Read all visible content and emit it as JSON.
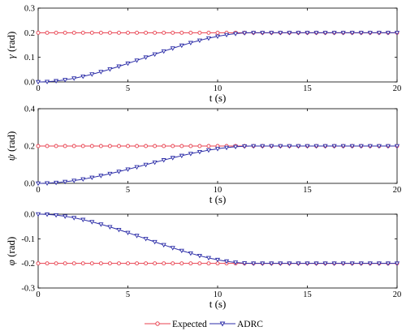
{
  "chart_data": [
    {
      "type": "line",
      "ylabel_symbol": "γ",
      "ylabel_unit": "(rad)",
      "xlabel": "t (s)",
      "xlim": [
        0,
        20
      ],
      "ylim": [
        0,
        0.3
      ],
      "xticks": [
        "0",
        "5",
        "10",
        "15",
        "20"
      ],
      "yticks": [
        "0.0",
        "0.1",
        "0.2",
        "0.3"
      ],
      "grid": false,
      "series": [
        {
          "name": "Expected",
          "color": "#e8414f",
          "marker": "circle",
          "x": [
            0,
            20
          ],
          "y": [
            0.2,
            0.2
          ]
        },
        {
          "name": "ADRC",
          "color": "#2d2ea8",
          "marker": "triangle-down",
          "x": [
            0,
            20
          ],
          "y_start": 0,
          "y_end": 0.2,
          "settle_time": 12
        }
      ]
    },
    {
      "type": "line",
      "ylabel_symbol": "ψ",
      "ylabel_unit": "(rad)",
      "xlabel": "t (s)",
      "xlim": [
        0,
        20
      ],
      "ylim": [
        0,
        0.4
      ],
      "xticks": [
        "0",
        "5",
        "10",
        "15",
        "20"
      ],
      "yticks": [
        "0.0",
        "0.2",
        "0.4"
      ],
      "grid": false,
      "series": [
        {
          "name": "Expected",
          "color": "#e8414f",
          "marker": "circle",
          "x": [
            0,
            20
          ],
          "y": [
            0.2,
            0.2
          ]
        },
        {
          "name": "ADRC",
          "color": "#2d2ea8",
          "marker": "triangle-down",
          "x": [
            0,
            20
          ],
          "y_start": 0,
          "y_end": 0.2,
          "settle_time": 12
        }
      ]
    },
    {
      "type": "line",
      "ylabel_symbol": "φ",
      "ylabel_unit": "(rad)",
      "xlabel": "t (s)",
      "xlim": [
        0,
        20
      ],
      "ylim": [
        -0.3,
        0
      ],
      "xticks": [
        "0",
        "5",
        "10",
        "15",
        "20"
      ],
      "yticks": [
        "0.0",
        "-0.1",
        "-0.2",
        "-0.3"
      ],
      "grid": false,
      "series": [
        {
          "name": "Expected",
          "color": "#e8414f",
          "marker": "circle",
          "x": [
            0,
            20
          ],
          "y": [
            -0.2,
            -0.2
          ]
        },
        {
          "name": "ADRC",
          "color": "#2d2ea8",
          "marker": "triangle-down",
          "x": [
            0,
            20
          ],
          "y_start": 0,
          "y_end": -0.2,
          "settle_time": 12
        }
      ]
    }
  ],
  "legend": {
    "position": "bottom-center",
    "entries": [
      {
        "label": "Expected",
        "color": "#e8414f",
        "marker": "circle"
      },
      {
        "label": "ADRC",
        "color": "#2d2ea8",
        "marker": "triangle-down"
      }
    ]
  }
}
